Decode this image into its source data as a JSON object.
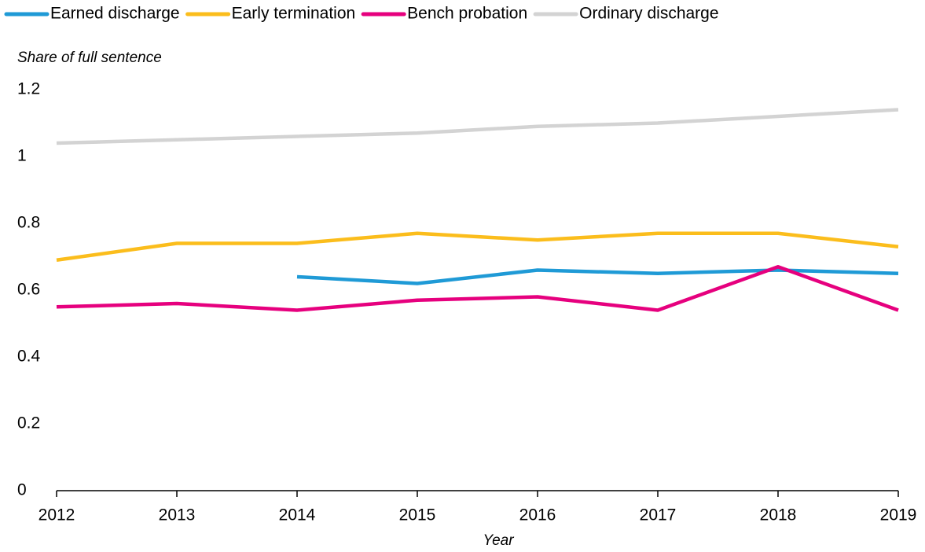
{
  "chart_data": {
    "type": "line",
    "y_label": "Share of full sentence",
    "x_label": "Year",
    "x": [
      2012,
      2013,
      2014,
      2015,
      2016,
      2017,
      2018,
      2019
    ],
    "xlim": [
      2012,
      2019
    ],
    "xticks": [
      2012,
      2013,
      2014,
      2015,
      2016,
      2017,
      2018,
      2019
    ],
    "ylim": [
      0,
      1.2
    ],
    "yticks": [
      0,
      0.2,
      0.4,
      0.6,
      0.8,
      1,
      1.2
    ],
    "grid": false,
    "legend": "top",
    "series": [
      {
        "name": "Earned discharge",
        "color": "#1f9ad6",
        "values": [
          null,
          null,
          0.64,
          0.62,
          0.66,
          0.65,
          0.66,
          0.65
        ]
      },
      {
        "name": "Early termination",
        "color": "#fbbd1c",
        "values": [
          0.69,
          0.74,
          0.74,
          0.77,
          0.75,
          0.77,
          0.77,
          0.73
        ]
      },
      {
        "name": "Bench probation",
        "color": "#e6007e",
        "values": [
          0.55,
          0.56,
          0.54,
          0.57,
          0.58,
          0.54,
          0.67,
          0.54
        ]
      },
      {
        "name": "Ordinary discharge",
        "color": "#d3d3d3",
        "values": [
          1.04,
          1.05,
          1.06,
          1.07,
          1.09,
          1.1,
          1.12,
          1.14
        ]
      }
    ]
  }
}
